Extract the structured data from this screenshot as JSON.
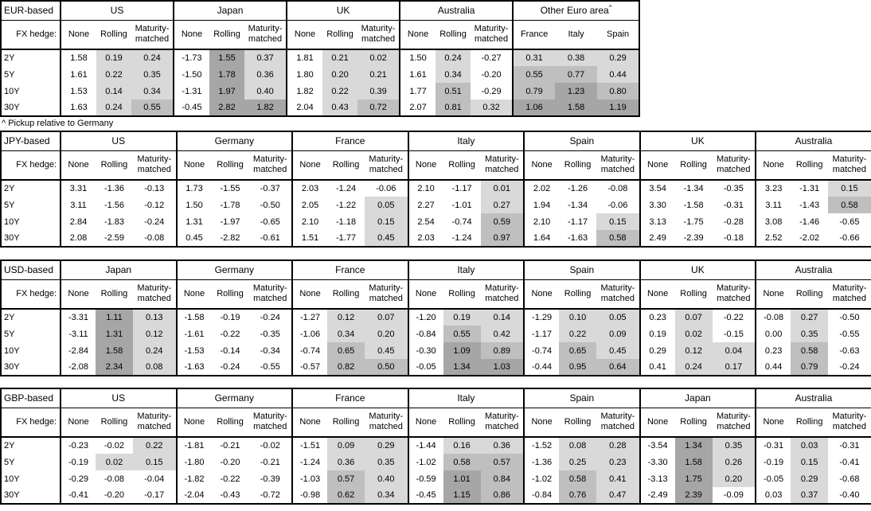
{
  "footnote": "^ Pickup relative to Germany",
  "fx_hedge_label": "FX hedge:",
  "hedge_columns": [
    "None",
    "Rolling",
    "Maturity-matched"
  ],
  "tenors": [
    "2Y",
    "5Y",
    "10Y",
    "30Y"
  ],
  "colors": {
    "background": "#ffffff",
    "border": "#000000",
    "shade_low": "#d9d9d9",
    "shade_mid": "#bfbfbf",
    "shade_high": "#a6a6a6"
  },
  "shade_rule": {
    "low_min": 0,
    "mid_min": 0.5,
    "high_min": 1.0,
    "note": "applied to Rolling, Maturity-matched and pickup columns only; negatives and None column are white"
  },
  "tables": [
    {
      "base": "EUR-based",
      "groups": [
        {
          "name": "US",
          "type": "hedge",
          "rows": [
            [
              "1.58",
              "0.19",
              "0.24"
            ],
            [
              "1.61",
              "0.22",
              "0.35"
            ],
            [
              "1.53",
              "0.14",
              "0.34"
            ],
            [
              "1.63",
              "0.24",
              "0.55"
            ]
          ]
        },
        {
          "name": "Japan",
          "type": "hedge",
          "rows": [
            [
              "-1.73",
              "1.55",
              "0.37"
            ],
            [
              "-1.50",
              "1.78",
              "0.36"
            ],
            [
              "-1.31",
              "1.97",
              "0.40"
            ],
            [
              "-0.45",
              "2.82",
              "1.82"
            ]
          ]
        },
        {
          "name": "UK",
          "type": "hedge",
          "rows": [
            [
              "1.81",
              "0.21",
              "0.02"
            ],
            [
              "1.80",
              "0.20",
              "0.21"
            ],
            [
              "1.82",
              "0.22",
              "0.39"
            ],
            [
              "2.04",
              "0.43",
              "0.72"
            ]
          ]
        },
        {
          "name": "Australia",
          "type": "hedge",
          "rows": [
            [
              "1.50",
              "0.24",
              "-0.27"
            ],
            [
              "1.61",
              "0.34",
              "-0.20"
            ],
            [
              "1.77",
              "0.51",
              "-0.29"
            ],
            [
              "2.07",
              "0.81",
              "0.32"
            ]
          ]
        },
        {
          "name": "Other Euro area",
          "sup": "^",
          "type": "pickup",
          "cols": [
            "France",
            "Italy",
            "Spain"
          ],
          "rows": [
            [
              "0.31",
              "0.38",
              "0.29"
            ],
            [
              "0.55",
              "0.77",
              "0.44"
            ],
            [
              "0.79",
              "1.23",
              "0.80"
            ],
            [
              "1.06",
              "1.58",
              "1.19"
            ]
          ]
        }
      ]
    },
    {
      "base": "JPY-based",
      "groups": [
        {
          "name": "US",
          "type": "hedge",
          "rows": [
            [
              "3.31",
              "-1.36",
              "-0.13"
            ],
            [
              "3.11",
              "-1.56",
              "-0.12"
            ],
            [
              "2.84",
              "-1.83",
              "-0.24"
            ],
            [
              "2.08",
              "-2.59",
              "-0.08"
            ]
          ]
        },
        {
          "name": "Germany",
          "type": "hedge",
          "rows": [
            [
              "1.73",
              "-1.55",
              "-0.37"
            ],
            [
              "1.50",
              "-1.78",
              "-0.50"
            ],
            [
              "1.31",
              "-1.97",
              "-0.65"
            ],
            [
              "0.45",
              "-2.82",
              "-0.61"
            ]
          ]
        },
        {
          "name": "France",
          "type": "hedge",
          "rows": [
            [
              "2.03",
              "-1.24",
              "-0.06"
            ],
            [
              "2.05",
              "-1.22",
              "0.05"
            ],
            [
              "2.10",
              "-1.18",
              "0.15"
            ],
            [
              "1.51",
              "-1.77",
              "0.45"
            ]
          ]
        },
        {
          "name": "Italy",
          "type": "hedge",
          "rows": [
            [
              "2.10",
              "-1.17",
              "0.01"
            ],
            [
              "2.27",
              "-1.01",
              "0.27"
            ],
            [
              "2.54",
              "-0.74",
              "0.59"
            ],
            [
              "2.03",
              "-1.24",
              "0.97"
            ]
          ]
        },
        {
          "name": "Spain",
          "type": "hedge",
          "rows": [
            [
              "2.02",
              "-1.26",
              "-0.08"
            ],
            [
              "1.94",
              "-1.34",
              "-0.06"
            ],
            [
              "2.10",
              "-1.17",
              "0.15"
            ],
            [
              "1.64",
              "-1.63",
              "0.58"
            ]
          ]
        },
        {
          "name": "UK",
          "type": "hedge",
          "rows": [
            [
              "3.54",
              "-1.34",
              "-0.35"
            ],
            [
              "3.30",
              "-1.58",
              "-0.31"
            ],
            [
              "3.13",
              "-1.75",
              "-0.28"
            ],
            [
              "2.49",
              "-2.39",
              "-0.18"
            ]
          ]
        },
        {
          "name": "Australia",
          "type": "hedge",
          "rows": [
            [
              "3.23",
              "-1.31",
              "0.15"
            ],
            [
              "3.11",
              "-1.43",
              "0.58"
            ],
            [
              "3.08",
              "-1.46",
              "-0.65"
            ],
            [
              "2.52",
              "-2.02",
              "-0.66"
            ]
          ]
        }
      ]
    },
    {
      "base": "USD-based",
      "groups": [
        {
          "name": "Japan",
          "type": "hedge",
          "rows": [
            [
              "-3.31",
              "1.11",
              "0.13"
            ],
            [
              "-3.11",
              "1.31",
              "0.12"
            ],
            [
              "-2.84",
              "1.58",
              "0.24"
            ],
            [
              "-2.08",
              "2.34",
              "0.08"
            ]
          ]
        },
        {
          "name": "Germany",
          "type": "hedge",
          "rows": [
            [
              "-1.58",
              "-0.19",
              "-0.24"
            ],
            [
              "-1.61",
              "-0.22",
              "-0.35"
            ],
            [
              "-1.53",
              "-0.14",
              "-0.34"
            ],
            [
              "-1.63",
              "-0.24",
              "-0.55"
            ]
          ]
        },
        {
          "name": "France",
          "type": "hedge",
          "rows": [
            [
              "-1.27",
              "0.12",
              "0.07"
            ],
            [
              "-1.06",
              "0.34",
              "0.20"
            ],
            [
              "-0.74",
              "0.65",
              "0.45"
            ],
            [
              "-0.57",
              "0.82",
              "0.50"
            ]
          ]
        },
        {
          "name": "Italy",
          "type": "hedge",
          "rows": [
            [
              "-1.20",
              "0.19",
              "0.14"
            ],
            [
              "-0.84",
              "0.55",
              "0.42"
            ],
            [
              "-0.30",
              "1.09",
              "0.89"
            ],
            [
              "-0.05",
              "1.34",
              "1.03"
            ]
          ]
        },
        {
          "name": "Spain",
          "type": "hedge",
          "rows": [
            [
              "-1.29",
              "0.10",
              "0.05"
            ],
            [
              "-1.17",
              "0.22",
              "0.09"
            ],
            [
              "-0.74",
              "0.65",
              "0.45"
            ],
            [
              "-0.44",
              "0.95",
              "0.64"
            ]
          ]
        },
        {
          "name": "UK",
          "type": "hedge",
          "rows": [
            [
              "0.23",
              "0.07",
              "-0.22"
            ],
            [
              "0.19",
              "0.02",
              "-0.15"
            ],
            [
              "0.29",
              "0.12",
              "0.04"
            ],
            [
              "0.41",
              "0.24",
              "0.17"
            ]
          ]
        },
        {
          "name": "Australia",
          "type": "hedge",
          "rows": [
            [
              "-0.08",
              "0.27",
              "-0.50"
            ],
            [
              "0.00",
              "0.35",
              "-0.55"
            ],
            [
              "0.23",
              "0.58",
              "-0.63"
            ],
            [
              "0.44",
              "0.79",
              "-0.24"
            ]
          ]
        }
      ]
    },
    {
      "base": "GBP-based",
      "groups": [
        {
          "name": "US",
          "type": "hedge",
          "rows": [
            [
              "-0.23",
              "-0.02",
              "0.22"
            ],
            [
              "-0.19",
              "0.02",
              "0.15"
            ],
            [
              "-0.29",
              "-0.08",
              "-0.04"
            ],
            [
              "-0.41",
              "-0.20",
              "-0.17"
            ]
          ]
        },
        {
          "name": "Germany",
          "type": "hedge",
          "rows": [
            [
              "-1.81",
              "-0.21",
              "-0.02"
            ],
            [
              "-1.80",
              "-0.20",
              "-0.21"
            ],
            [
              "-1.82",
              "-0.22",
              "-0.39"
            ],
            [
              "-2.04",
              "-0.43",
              "-0.72"
            ]
          ]
        },
        {
          "name": "France",
          "type": "hedge",
          "rows": [
            [
              "-1.51",
              "0.09",
              "0.29"
            ],
            [
              "-1.24",
              "0.36",
              "0.35"
            ],
            [
              "-1.03",
              "0.57",
              "0.40"
            ],
            [
              "-0.98",
              "0.62",
              "0.34"
            ]
          ]
        },
        {
          "name": "Italy",
          "type": "hedge",
          "rows": [
            [
              "-1.44",
              "0.16",
              "0.36"
            ],
            [
              "-1.02",
              "0.58",
              "0.57"
            ],
            [
              "-0.59",
              "1.01",
              "0.84"
            ],
            [
              "-0.45",
              "1.15",
              "0.86"
            ]
          ]
        },
        {
          "name": "Spain",
          "type": "hedge",
          "rows": [
            [
              "-1.52",
              "0.08",
              "0.28"
            ],
            [
              "-1.36",
              "0.25",
              "0.23"
            ],
            [
              "-1.02",
              "0.58",
              "0.41"
            ],
            [
              "-0.84",
              "0.76",
              "0.47"
            ]
          ]
        },
        {
          "name": "Japan",
          "type": "hedge",
          "rows": [
            [
              "-3.54",
              "1.34",
              "0.35"
            ],
            [
              "-3.30",
              "1.58",
              "0.26"
            ],
            [
              "-3.13",
              "1.75",
              "0.20"
            ],
            [
              "-2.49",
              "2.39",
              "-0.09"
            ]
          ]
        },
        {
          "name": "Australia",
          "type": "hedge",
          "rows": [
            [
              "-0.31",
              "0.03",
              "-0.31"
            ],
            [
              "-0.19",
              "0.15",
              "-0.41"
            ],
            [
              "-0.05",
              "0.29",
              "-0.68"
            ],
            [
              "0.03",
              "0.37",
              "-0.40"
            ]
          ]
        }
      ]
    }
  ]
}
